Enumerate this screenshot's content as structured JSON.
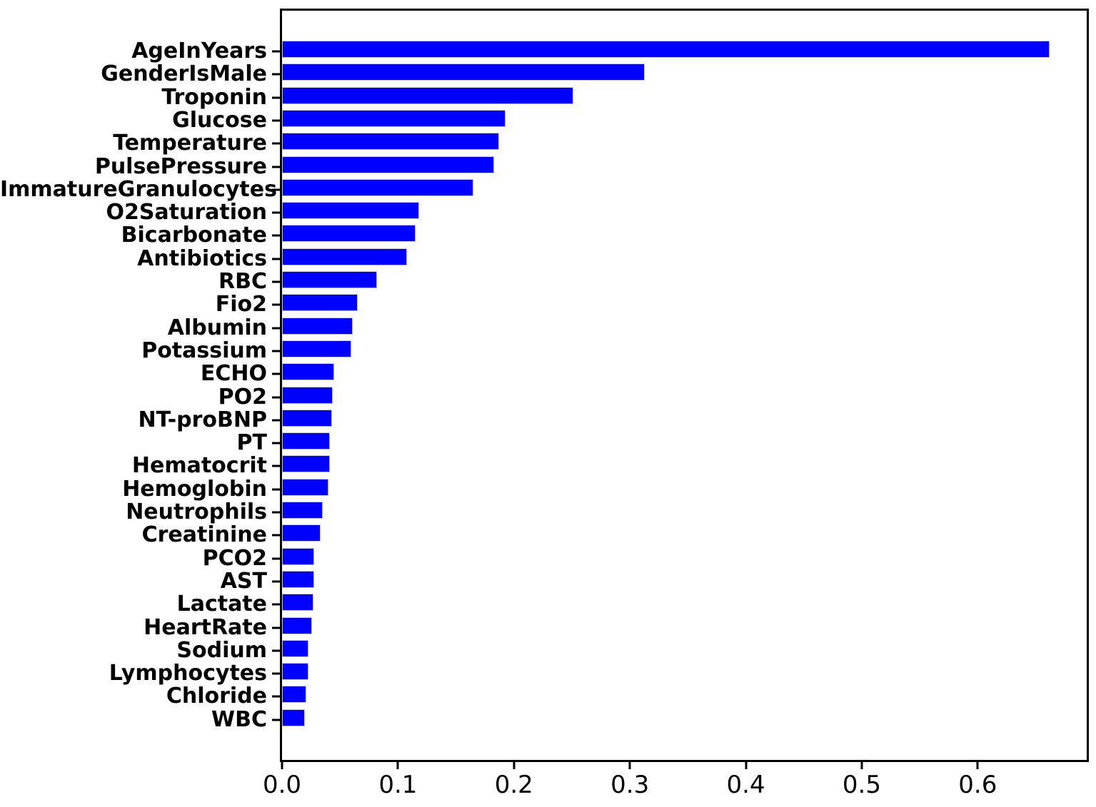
{
  "chart_data": {
    "type": "bar",
    "orientation": "horizontal",
    "title": "",
    "xlabel": "",
    "ylabel": "",
    "categories": [
      "AgeInYears",
      "GenderIsMale",
      "Troponin",
      "Glucose",
      "Temperature",
      "PulsePressure",
      "ImmatureGranulocytes",
      "O2Saturation",
      "Bicarbonate",
      "Antibiotics",
      "RBC",
      "Fio2",
      "Albumin",
      "Potassium",
      "ECHO",
      "PO2",
      "NT-proBNP",
      "PT",
      "Hematocrit",
      "Hemoglobin",
      "Neutrophils",
      "Creatinine",
      "PCO2",
      "AST",
      "Lactate",
      "HeartRate",
      "Sodium",
      "Lymphocytes",
      "Chloride",
      "WBC"
    ],
    "values": [
      0.662,
      0.313,
      0.251,
      0.193,
      0.187,
      0.183,
      0.165,
      0.118,
      0.115,
      0.108,
      0.082,
      0.065,
      0.061,
      0.06,
      0.045,
      0.044,
      0.043,
      0.041,
      0.041,
      0.04,
      0.035,
      0.033,
      0.028,
      0.028,
      0.027,
      0.026,
      0.023,
      0.023,
      0.021,
      0.02
    ],
    "xlim": [
      0,
      0.694
    ],
    "x_ticks": [
      0.0,
      0.1,
      0.2,
      0.3,
      0.4,
      0.5,
      0.6
    ],
    "x_tick_labels": [
      "0.0",
      "0.1",
      "0.2",
      "0.3",
      "0.4",
      "0.5",
      "0.6"
    ],
    "grid": false,
    "legend": null,
    "bar_color": "#0000ff",
    "bar_edge_color": "#c9c9e0",
    "axis_color": "#000000",
    "background_color": "#ffffff"
  }
}
